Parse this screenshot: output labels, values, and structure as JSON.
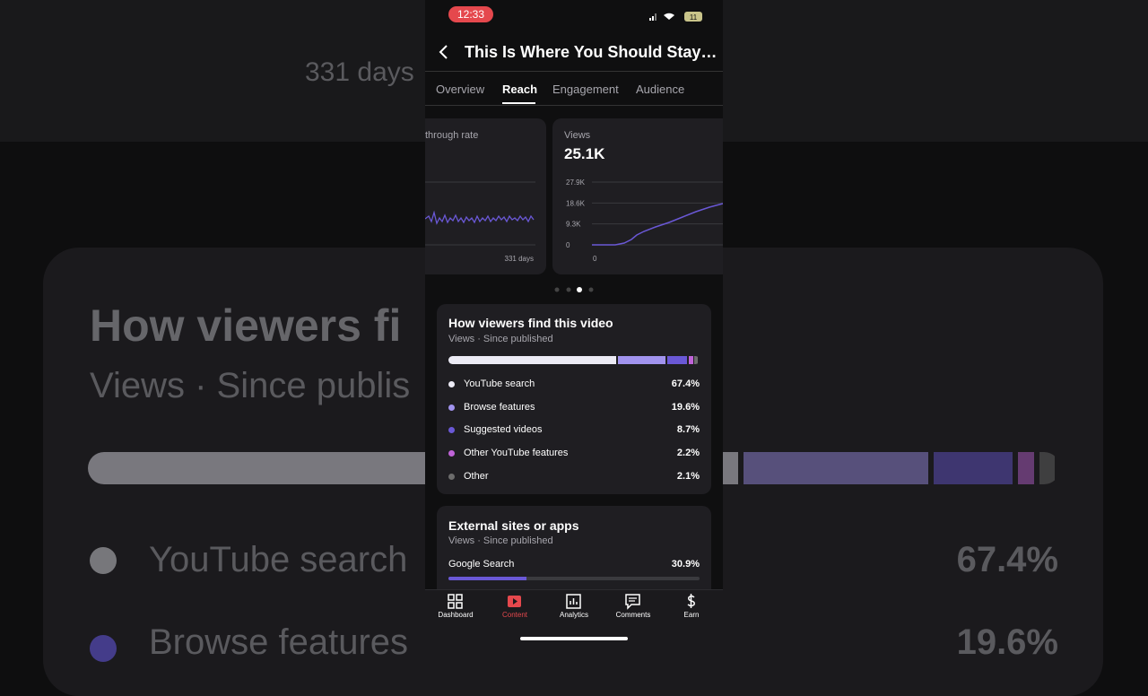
{
  "background": {
    "days": "331 days",
    "title": "How viewers fi",
    "subtitle": "Views · Since publis",
    "items": [
      {
        "name": "YouTube search",
        "value_label": "67.4%"
      },
      {
        "name": "Browse features",
        "value_label": "19.6%"
      }
    ]
  },
  "status": {
    "time": "12:33",
    "battery": "11"
  },
  "header": {
    "title": "This Is Where You Should Stay…"
  },
  "tabs": [
    "Overview",
    "Reach",
    "Engagement",
    "Audience"
  ],
  "active_tab": 1,
  "cards": [
    {
      "title": "through rate",
      "x_label": "331 days"
    },
    {
      "title": "Views",
      "value": "25.1K",
      "yticks": [
        {
          "value": 27900,
          "label": "27.9K"
        },
        {
          "value": 18600,
          "label": "18.6K"
        },
        {
          "value": 9300,
          "label": "9.3K"
        },
        0
      ],
      "ylim": [
        0,
        27900
      ],
      "x_label": "0"
    }
  ],
  "traffic": {
    "title": "How viewers find this video",
    "subtitle": "Views · Since published",
    "sources": [
      {
        "name": "YouTube search",
        "value": 67.4,
        "value_label": "67.4%",
        "color": "#ecebf5"
      },
      {
        "name": "Browse features",
        "value": 19.6,
        "value_label": "19.6%",
        "color": "#a193ee"
      },
      {
        "name": "Suggested videos",
        "value": 8.7,
        "value_label": "8.7%",
        "color": "#6a58d6"
      },
      {
        "name": "Other YouTube features",
        "value": 2.2,
        "value_label": "2.2%",
        "color": "#c063d8"
      },
      {
        "name": "Other",
        "value": 2.1,
        "value_label": "2.1%",
        "color": "#6c6c6c"
      }
    ]
  },
  "external": {
    "title": "External sites or apps",
    "subtitle": "Views · Since published",
    "items": [
      {
        "name": "Google Search",
        "value": 30.9,
        "value_label": "30.9%",
        "color": "#6a58d6"
      }
    ]
  },
  "nav": [
    "Dashboard",
    "Content",
    "Analytics",
    "Comments",
    "Earn"
  ],
  "active_nav": 1
}
